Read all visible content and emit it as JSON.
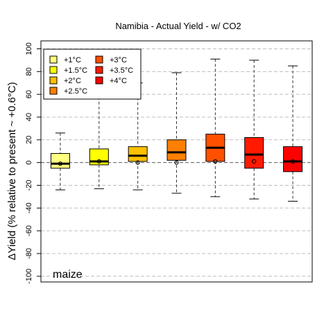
{
  "chart_data": {
    "type": "boxplot",
    "title": "Namibia - Actual Yield - w/ CO2",
    "ylabel": "ΔYield (% relative to present ~ +0.6°C)",
    "xlabel": "",
    "annotation": "maize",
    "ylim": [
      -105,
      107
    ],
    "yticks": [
      -100,
      -80,
      -60,
      -40,
      -20,
      0,
      20,
      40,
      60,
      80,
      100
    ],
    "grid": "horizontal dashed",
    "reference_line": 0,
    "legend_position": "top-left",
    "series": [
      {
        "name": "+1°C",
        "color": "#FFFF80",
        "whisker_low": -24,
        "q1": -5,
        "median": -1,
        "q3": 8,
        "whisker_high": 26,
        "marker": -1
      },
      {
        "name": "+1.5°C",
        "color": "#FFFF00",
        "whisker_low": -23,
        "q1": -2,
        "median": 1,
        "q3": 12,
        "whisker_high": 62,
        "marker": 1
      },
      {
        "name": "+2°C",
        "color": "#FFC000",
        "whisker_low": -24,
        "q1": 1,
        "median": 6,
        "q3": 14,
        "whisker_high": 70,
        "marker": 0
      },
      {
        "name": "+2.5°C",
        "color": "#FF8000",
        "whisker_low": -27,
        "q1": 2,
        "median": 9,
        "q3": 20,
        "whisker_high": 79,
        "marker": 0
      },
      {
        "name": "+3°C",
        "color": "#FF5000",
        "whisker_low": -30,
        "q1": 1,
        "median": 13,
        "q3": 25,
        "whisker_high": 91,
        "marker": 1
      },
      {
        "name": "+3.5°C",
        "color": "#FF1A00",
        "whisker_low": -32,
        "q1": -5,
        "median": 7,
        "q3": 22,
        "whisker_high": 90,
        "marker": 1
      },
      {
        "name": "+4°C",
        "color": "#FF0000",
        "whisker_low": -34,
        "q1": -8,
        "median": 1,
        "q3": 14,
        "whisker_high": 85,
        "marker": 1
      }
    ]
  }
}
